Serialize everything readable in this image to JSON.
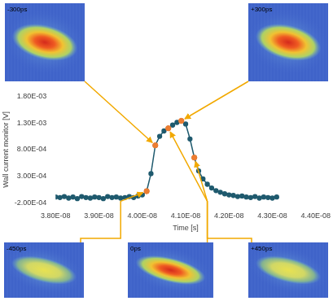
{
  "chart_data": {
    "type": "line",
    "xlabel": "Time [s]",
    "ylabel": "Wall current monitor [V]",
    "x": [
      3.8e-08,
      3.81e-08,
      3.82e-08,
      3.83e-08,
      3.84e-08,
      3.85e-08,
      3.86e-08,
      3.87e-08,
      3.88e-08,
      3.89e-08,
      3.9e-08,
      3.91e-08,
      3.92e-08,
      3.93e-08,
      3.94e-08,
      3.95e-08,
      3.96e-08,
      3.97e-08,
      3.98e-08,
      3.99e-08,
      4e-08,
      4.01e-08,
      4.02e-08,
      4.03e-08,
      4.04e-08,
      4.05e-08,
      4.06e-08,
      4.07e-08,
      4.08e-08,
      4.09e-08,
      4.1e-08,
      4.11e-08,
      4.12e-08,
      4.13e-08,
      4.14e-08,
      4.15e-08,
      4.16e-08,
      4.17e-08,
      4.18e-08,
      4.19e-08,
      4.2e-08,
      4.21e-08,
      4.22e-08,
      4.23e-08,
      4.24e-08,
      4.25e-08,
      4.26e-08,
      4.27e-08,
      4.28e-08,
      4.29e-08,
      4.3e-08,
      4.31e-08
    ],
    "series": [
      {
        "color": "#1f5a6e",
        "marker": "circle",
        "values": [
          -9e-05,
          -0.0001,
          -8e-05,
          -0.00011,
          -9e-05,
          -0.00012,
          -8e-05,
          -0.0001,
          -0.00011,
          -9e-05,
          -0.0001,
          -0.00012,
          -8e-05,
          -0.0001,
          -9e-05,
          -0.00011,
          -0.0001,
          -8e-05,
          -0.0001,
          -7e-05,
          -5e-05,
          2e-05,
          0.00035,
          0.00088,
          0.00105,
          0.00115,
          0.0012,
          0.00126,
          0.00131,
          0.00134,
          0.00128,
          0.001,
          0.00065,
          0.0004,
          0.00025,
          0.00015,
          8e-05,
          3e-05,
          0,
          -3e-05,
          -5e-05,
          -6e-05,
          -8e-05,
          -7e-05,
          -9e-05,
          -0.0001,
          -8e-05,
          -0.00011,
          -9e-05,
          -0.0001,
          -0.00011,
          -9e-05
        ]
      }
    ],
    "annotations": [
      {
        "text": "-450ps",
        "x": 4.01e-08,
        "y": 2e-05,
        "color": "#ed7d31",
        "marker": "circle"
      },
      {
        "text": "-300ps",
        "x": 4.03e-08,
        "y": 0.00088,
        "color": "#ed7d31",
        "marker": "circle"
      },
      {
        "text": "0ps",
        "x": 4.06e-08,
        "y": 0.0012,
        "color": "#ed7d31",
        "marker": "circle"
      },
      {
        "text": "+300ps",
        "x": 4.09e-08,
        "y": 0.00134,
        "color": "#ed7d31",
        "marker": "circle"
      },
      {
        "text": "+450ps",
        "x": 4.12e-08,
        "y": 0.00065,
        "color": "#ed7d31",
        "marker": "circle"
      }
    ],
    "xlim": [
      3.8e-08,
      4.4e-08
    ],
    "xticks": [
      {
        "value": 3.8e-08,
        "label": "3.80E-08"
      },
      {
        "value": 3.9e-08,
        "label": "3.90E-08"
      },
      {
        "value": 4e-08,
        "label": "4.00E-08"
      },
      {
        "value": 4.1e-08,
        "label": "4.10E-08"
      },
      {
        "value": 4.2e-08,
        "label": "4.20E-08"
      },
      {
        "value": 4.3e-08,
        "label": "4.30E-08"
      },
      {
        "value": 4.4e-08,
        "label": "4.40E-08"
      }
    ],
    "ylim": [
      -0.0002,
      0.0018
    ],
    "yticks": [
      {
        "value": -0.0002,
        "label": "-2.00E-04"
      },
      {
        "value": 0.0003,
        "label": "3.00E-04"
      },
      {
        "value": 0.0008,
        "label": "8.00E-04"
      },
      {
        "value": 0.0013,
        "label": "1.30E-03"
      },
      {
        "value": 0.0018,
        "label": "1.80E-03"
      }
    ],
    "grid": false
  }
}
